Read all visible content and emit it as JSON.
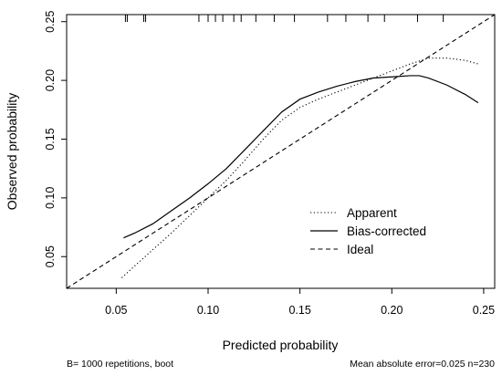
{
  "chart_data": {
    "type": "line",
    "xlabel": "Predicted probability",
    "ylabel": "Observed probability",
    "xlim": [
      0.023,
      0.256
    ],
    "ylim": [
      0.023,
      0.256
    ],
    "x_ticks": [
      "0.05",
      "0.10",
      "0.15",
      "0.20",
      "0.25"
    ],
    "y_ticks": [
      "0.05",
      "0.10",
      "0.15",
      "0.20",
      "0.25"
    ],
    "legend_position": "bottom-right",
    "footnote_left": "B= 1000 repetitions, boot",
    "footnote_right": "Mean absolute error=0.025 n=230",
    "grid": false,
    "series": [
      {
        "name": "Apparent",
        "line_style": "dotted",
        "color": "#000000",
        "x": [
          0.053,
          0.06,
          0.07,
          0.08,
          0.09,
          0.1,
          0.11,
          0.12,
          0.13,
          0.14,
          0.15,
          0.16,
          0.17,
          0.18,
          0.19,
          0.2,
          0.21,
          0.22,
          0.23,
          0.24,
          0.247
        ],
        "y": [
          0.032,
          0.042,
          0.056,
          0.07,
          0.085,
          0.1,
          0.115,
          0.132,
          0.15,
          0.166,
          0.177,
          0.184,
          0.19,
          0.196,
          0.202,
          0.208,
          0.214,
          0.219,
          0.219,
          0.217,
          0.214
        ]
      },
      {
        "name": "Bias-corrected",
        "line_style": "solid",
        "color": "#000000",
        "x": [
          0.054,
          0.06,
          0.07,
          0.08,
          0.09,
          0.1,
          0.11,
          0.12,
          0.13,
          0.14,
          0.15,
          0.16,
          0.17,
          0.18,
          0.19,
          0.2,
          0.21,
          0.215,
          0.22,
          0.23,
          0.24,
          0.247
        ],
        "y": [
          0.066,
          0.07,
          0.078,
          0.089,
          0.1,
          0.112,
          0.125,
          0.141,
          0.157,
          0.173,
          0.184,
          0.19,
          0.195,
          0.199,
          0.202,
          0.203,
          0.204,
          0.204,
          0.202,
          0.196,
          0.188,
          0.181
        ]
      },
      {
        "name": "Ideal",
        "line_style": "dashed",
        "color": "#000000",
        "x": [
          0.023,
          0.256
        ],
        "y": [
          0.023,
          0.256
        ]
      }
    ],
    "rug_top_x": [
      0.055,
      0.056,
      0.065,
      0.066,
      0.095,
      0.1,
      0.104,
      0.108,
      0.114,
      0.118,
      0.126,
      0.136,
      0.147,
      0.165,
      0.175,
      0.187,
      0.196,
      0.214,
      0.228
    ]
  }
}
